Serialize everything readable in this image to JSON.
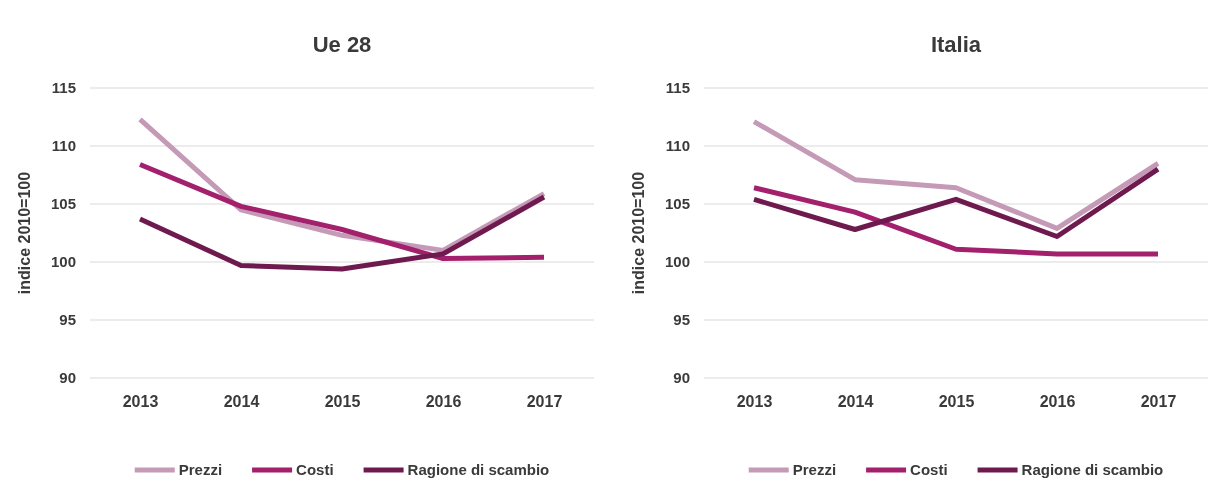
{
  "chart_data": [
    {
      "type": "line",
      "title": "Ue 28",
      "ylabel": "indice 2010=100",
      "categories": [
        "2013",
        "2014",
        "2015",
        "2016",
        "2017"
      ],
      "ylim": [
        90,
        115
      ],
      "yticks": [
        90,
        95,
        100,
        105,
        110,
        115
      ],
      "grid": "y",
      "legend": "bottom",
      "series": [
        {
          "name": "Prezzi",
          "color": "#c49ab7",
          "values": [
            112.3,
            104.5,
            102.3,
            101,
            105.9
          ]
        },
        {
          "name": "Costi",
          "color": "#a3206d",
          "values": [
            108.4,
            104.8,
            102.8,
            100.3,
            100.4
          ]
        },
        {
          "name": "Ragione di scambio",
          "color": "#6e1a4e",
          "values": [
            103.7,
            99.7,
            99.4,
            100.7,
            105.6
          ]
        }
      ]
    },
    {
      "type": "line",
      "title": "Italia",
      "ylabel": "indice 2010=100",
      "categories": [
        "2013",
        "2014",
        "2015",
        "2016",
        "2017"
      ],
      "ylim": [
        90,
        115
      ],
      "yticks": [
        90,
        95,
        100,
        105,
        110,
        115
      ],
      "grid": "y",
      "legend": "bottom",
      "series": [
        {
          "name": "Prezzi",
          "color": "#c49ab7",
          "values": [
            112.1,
            107.1,
            106.4,
            102.9,
            108.5
          ]
        },
        {
          "name": "Costi",
          "color": "#a3206d",
          "values": [
            106.4,
            104.3,
            101.1,
            100.7,
            100.7
          ]
        },
        {
          "name": "Ragione di scambio",
          "color": "#6e1a4e",
          "values": [
            105.4,
            102.8,
            105.4,
            102.2,
            108
          ]
        }
      ]
    }
  ]
}
